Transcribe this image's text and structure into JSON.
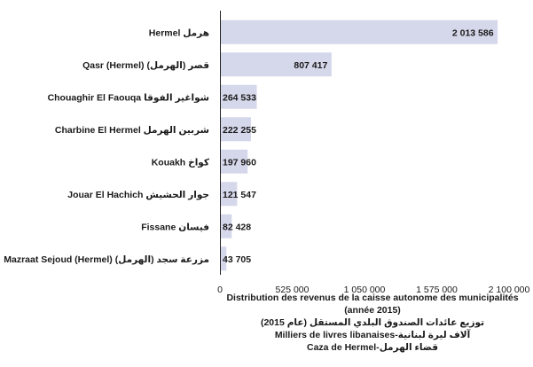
{
  "chart_data": {
    "type": "bar",
    "orientation": "horizontal",
    "categories": [
      "Hermel هرمل",
      "Qasr (Hermel) قصر (الهرمل)",
      "Chouaghir El Faouqa شواغير الفوقا",
      "Charbine El Hermel شربين الهرمل",
      "Kouakh كواخ",
      "Jouar El Hachich جوار الحشيش",
      "Fissane فيسان",
      "Mazraat Sejoud (Hermel) مزرعة سجد (الهرمل)"
    ],
    "values": [
      2013586,
      807417,
      264533,
      222255,
      197960,
      121547,
      82428,
      43705
    ],
    "value_labels": [
      "2 013 586",
      "807 417",
      "264 533",
      "222 255",
      "197 960",
      "121 547",
      "82 428",
      "43 705"
    ],
    "xlim": [
      0,
      2100000
    ],
    "x_ticks": [
      0,
      525000,
      1050000,
      1575000,
      2100000
    ],
    "x_tick_labels": [
      "0",
      "525 000",
      "1 050 000",
      "1 575 000",
      "2 100 000"
    ],
    "bar_color": "#d5d7ea",
    "grid": false,
    "legend": "none"
  },
  "caption": {
    "line1": "Distribution des revenus de la caisse autonome des municipalités (année 2015)",
    "line2": "توزيع عائدات الصندوق البلدي المستقل (عام 2015)",
    "line3": "Milliers de livres libanaises-آلاف ليرة لبنانية",
    "line4": "Caza de Hermel-قضاء الهرمل"
  }
}
